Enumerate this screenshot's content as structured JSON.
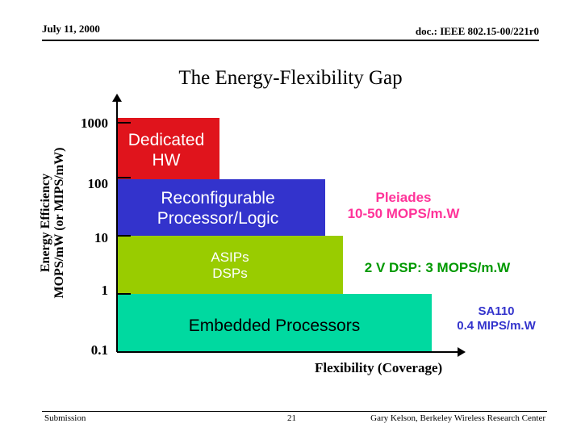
{
  "header": {
    "date": "July 11, 2000",
    "doc": "doc.: IEEE 802.15-00/221r0"
  },
  "title": "The Energy-Flexibility Gap",
  "y_axis": {
    "label_line1": "Energy Efficiency",
    "label_line2": "MOPS/mW (or MIPS/mW)",
    "ticks": [
      "1000",
      "100",
      "10",
      "1",
      "0.1"
    ]
  },
  "x_axis": {
    "label": "Flexibility (Coverage)"
  },
  "blocks": {
    "dedicated": {
      "line1": "Dedicated",
      "line2": "HW",
      "color": "#e0141c"
    },
    "reconfig": {
      "line1": "Reconfigurable",
      "line2": "Processor/Logic",
      "color": "#3333cc"
    },
    "asip": {
      "line1": "ASIPs",
      "line2": "DSPs",
      "color": "#99cc00"
    },
    "embedded": {
      "label": "Embedded Processors",
      "color": "#00d9a0"
    }
  },
  "annotations": {
    "pleiades_line1": "Pleiades",
    "pleiades_line2": "10-50 MOPS/m.W",
    "dsp": "2 V DSP: 3 MOPS/m.W",
    "sa_line1": "SA110",
    "sa_line2": "0.4 MIPS/m.W"
  },
  "colors": {
    "white_text": "#ffffff",
    "pink_text": "#ff3399",
    "green_text": "#009900",
    "blue_text": "#3333cc"
  },
  "footer": {
    "left": "Submission",
    "page": "21",
    "right": "Gary Kelson, Berkeley Wireless Research Center"
  }
}
